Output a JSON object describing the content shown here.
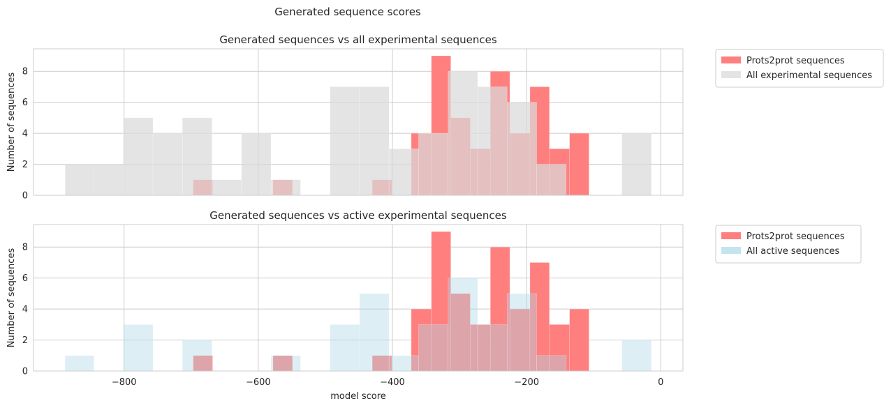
{
  "chart_data": {
    "title": "Generated sequence scores",
    "type": "bar",
    "xlabel": "model score",
    "xlim": [
      -935,
      33
    ],
    "xticks": [
      -800,
      -600,
      -400,
      -200,
      0
    ],
    "colors": {
      "generated": "#ff7f7f",
      "all_experimental": "#e3e3e3",
      "active": "#daeff6",
      "grid": "#cccccc",
      "frame": "#cccccc"
    },
    "panels": [
      {
        "title": "Generated sequences vs all experimental sequences",
        "ylabel": "Number of sequences",
        "ylim": [
          0,
          9.45
        ],
        "yticks": [
          0,
          2,
          4,
          6,
          8
        ],
        "legend_position": "outside-right-top",
        "series": [
          {
            "name": "Prots2prot sequences",
            "color": "#ff7f7f",
            "opacity": 1.0,
            "bins": [
              {
                "x0": -697,
                "x1": -668,
                "y": 1
              },
              {
                "x0": -578,
                "x1": -549,
                "y": 1
              },
              {
                "x0": -430,
                "x1": -401,
                "y": 1
              },
              {
                "x0": -372,
                "x1": -342,
                "y": 4
              },
              {
                "x0": -342,
                "x1": -313,
                "y": 9
              },
              {
                "x0": -313,
                "x1": -284,
                "y": 5
              },
              {
                "x0": -284,
                "x1": -254,
                "y": 3
              },
              {
                "x0": -254,
                "x1": -225,
                "y": 8
              },
              {
                "x0": -225,
                "x1": -195,
                "y": 4
              },
              {
                "x0": -195,
                "x1": -166,
                "y": 7
              },
              {
                "x0": -166,
                "x1": -136,
                "y": 3
              },
              {
                "x0": -136,
                "x1": -107,
                "y": 4
              }
            ]
          },
          {
            "name": "All experimental sequences",
            "color": "#d9d9d9",
            "opacity": 0.72,
            "bins": [
              {
                "x0": -888,
                "x1": -845,
                "y": 2
              },
              {
                "x0": -845,
                "x1": -801,
                "y": 2
              },
              {
                "x0": -801,
                "x1": -757,
                "y": 5
              },
              {
                "x0": -757,
                "x1": -713,
                "y": 4
              },
              {
                "x0": -713,
                "x1": -669,
                "y": 5
              },
              {
                "x0": -669,
                "x1": -625,
                "y": 1
              },
              {
                "x0": -625,
                "x1": -581,
                "y": 4
              },
              {
                "x0": -581,
                "x1": -537,
                "y": 1
              },
              {
                "x0": -493,
                "x1": -449,
                "y": 7
              },
              {
                "x0": -449,
                "x1": -405,
                "y": 7
              },
              {
                "x0": -405,
                "x1": -361,
                "y": 3
              },
              {
                "x0": -361,
                "x1": -317,
                "y": 4
              },
              {
                "x0": -317,
                "x1": -273,
                "y": 8
              },
              {
                "x0": -273,
                "x1": -229,
                "y": 7
              },
              {
                "x0": -229,
                "x1": -185,
                "y": 6
              },
              {
                "x0": -185,
                "x1": -141,
                "y": 2
              },
              {
                "x0": -58,
                "x1": -14,
                "y": 4
              }
            ]
          }
        ]
      },
      {
        "title": "Generated sequences vs active experimental sequences",
        "ylabel": "Number of sequences",
        "ylim": [
          0,
          9.45
        ],
        "yticks": [
          0,
          2,
          4,
          6,
          8
        ],
        "legend_position": "outside-right-top",
        "series": [
          {
            "name": "Prots2prot sequences",
            "color": "#ff7f7f",
            "opacity": 1.0,
            "bins": [
              {
                "x0": -697,
                "x1": -668,
                "y": 1
              },
              {
                "x0": -578,
                "x1": -549,
                "y": 1
              },
              {
                "x0": -430,
                "x1": -401,
                "y": 1
              },
              {
                "x0": -372,
                "x1": -342,
                "y": 4
              },
              {
                "x0": -342,
                "x1": -313,
                "y": 9
              },
              {
                "x0": -313,
                "x1": -284,
                "y": 5
              },
              {
                "x0": -284,
                "x1": -254,
                "y": 3
              },
              {
                "x0": -254,
                "x1": -225,
                "y": 8
              },
              {
                "x0": -225,
                "x1": -195,
                "y": 4
              },
              {
                "x0": -195,
                "x1": -166,
                "y": 7
              },
              {
                "x0": -166,
                "x1": -136,
                "y": 3
              },
              {
                "x0": -136,
                "x1": -107,
                "y": 4
              }
            ]
          },
          {
            "name": "All active sequences",
            "color": "#add8e6",
            "opacity": 0.42,
            "bins": [
              {
                "x0": -888,
                "x1": -845,
                "y": 1
              },
              {
                "x0": -801,
                "x1": -757,
                "y": 3
              },
              {
                "x0": -713,
                "x1": -669,
                "y": 2
              },
              {
                "x0": -581,
                "x1": -537,
                "y": 1
              },
              {
                "x0": -493,
                "x1": -449,
                "y": 3
              },
              {
                "x0": -449,
                "x1": -405,
                "y": 5
              },
              {
                "x0": -405,
                "x1": -361,
                "y": 1
              },
              {
                "x0": -361,
                "x1": -317,
                "y": 3
              },
              {
                "x0": -317,
                "x1": -273,
                "y": 6
              },
              {
                "x0": -273,
                "x1": -229,
                "y": 3
              },
              {
                "x0": -229,
                "x1": -185,
                "y": 5
              },
              {
                "x0": -185,
                "x1": -141,
                "y": 1
              },
              {
                "x0": -58,
                "x1": -14,
                "y": 2
              }
            ]
          }
        ]
      }
    ]
  }
}
